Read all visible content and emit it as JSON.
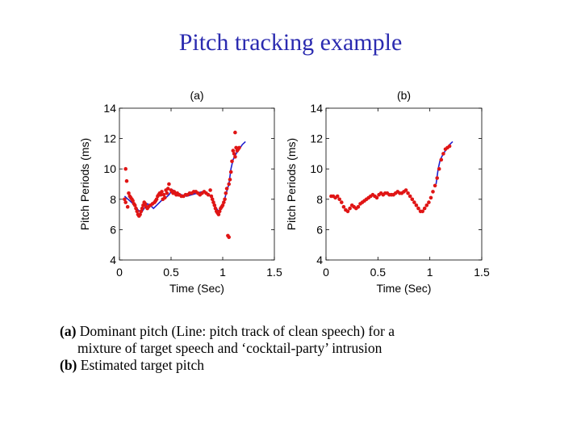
{
  "slide": {
    "title": "Pitch tracking example"
  },
  "caption": {
    "a_label": "(a)",
    "a_text_line1": " Dominant pitch (Line: pitch track of clean speech) for a",
    "a_text_line2": "mixture of target speech and ‘cocktail-party’ intrusion",
    "b_label": "(b)",
    "b_text": " Estimated target pitch"
  },
  "colors": {
    "line": "#1f1fd0",
    "dots": "#e01515",
    "axis": "#000000",
    "title": "#2b2bb0"
  },
  "chart_data": [
    {
      "type": "scatter",
      "title": "(a)",
      "xlabel": "Time (Sec)",
      "ylabel": "Pitch Periods (ms)",
      "xlim": [
        0,
        1.5
      ],
      "ylim": [
        4,
        14
      ],
      "xticks": [
        "0",
        "0.5",
        "1",
        "1.5"
      ],
      "yticks": [
        "4",
        "6",
        "8",
        "10",
        "12",
        "14"
      ],
      "grid": false,
      "series": [
        {
          "kind": "line",
          "x": [
            0.05,
            0.1,
            0.15,
            0.18,
            0.21,
            0.24,
            0.27,
            0.3,
            0.33,
            0.36,
            0.39,
            0.42,
            0.45,
            0.48,
            0.5,
            0.52,
            0.55,
            0.6,
            0.65,
            0.7,
            0.75,
            0.8,
            0.85,
            0.9,
            0.93,
            0.96,
            0.99,
            1.01,
            1.03,
            1.06,
            1.08,
            1.1,
            1.13,
            1.16,
            1.19,
            1.22
          ],
          "y": [
            8.2,
            7.9,
            7.6,
            7.3,
            7.1,
            7.4,
            7.7,
            7.6,
            7.4,
            7.6,
            7.8,
            8.0,
            8.1,
            8.3,
            8.5,
            8.6,
            8.4,
            8.3,
            8.2,
            8.3,
            8.4,
            8.5,
            8.4,
            8.1,
            7.5,
            7.2,
            7.4,
            7.8,
            8.3,
            9.0,
            10.0,
            10.6,
            11.0,
            11.3,
            11.6,
            11.8
          ]
        },
        {
          "kind": "points",
          "x": [
            0.05,
            0.06,
            0.06,
            0.07,
            0.08,
            0.09,
            0.1,
            0.11,
            0.12,
            0.13,
            0.14,
            0.15,
            0.16,
            0.17,
            0.18,
            0.19,
            0.2,
            0.21,
            0.22,
            0.23,
            0.24,
            0.25,
            0.26,
            0.27,
            0.28,
            0.3,
            0.32,
            0.34,
            0.35,
            0.36,
            0.37,
            0.38,
            0.39,
            0.4,
            0.41,
            0.42,
            0.43,
            0.44,
            0.45,
            0.46,
            0.47,
            0.48,
            0.5,
            0.51,
            0.52,
            0.53,
            0.54,
            0.55,
            0.56,
            0.57,
            0.58,
            0.6,
            0.62,
            0.64,
            0.66,
            0.68,
            0.7,
            0.72,
            0.74,
            0.76,
            0.78,
            0.8,
            0.82,
            0.84,
            0.86,
            0.88,
            0.89,
            0.9,
            0.91,
            0.92,
            0.93,
            0.94,
            0.95,
            0.96,
            0.97,
            0.98,
            0.99,
            1.0,
            1.01,
            1.02,
            1.03,
            1.04,
            1.06,
            1.07,
            1.08,
            1.09,
            1.1,
            1.11,
            1.12,
            1.13,
            1.14,
            1.15,
            1.16,
            1.05,
            1.06,
            1.12
          ],
          "y": [
            8.0,
            10.0,
            7.8,
            9.2,
            7.5,
            8.4,
            8.2,
            8.1,
            8.0,
            7.9,
            7.7,
            7.6,
            7.4,
            7.2,
            7.0,
            6.9,
            7.0,
            7.2,
            7.4,
            7.6,
            7.8,
            7.7,
            7.5,
            7.4,
            7.5,
            7.6,
            7.7,
            7.8,
            7.9,
            8.0,
            8.2,
            8.3,
            8.4,
            8.3,
            8.5,
            8.0,
            8.3,
            8.1,
            8.6,
            8.4,
            8.7,
            9.0,
            8.6,
            8.5,
            8.4,
            8.5,
            8.4,
            8.3,
            8.4,
            8.3,
            8.3,
            8.2,
            8.2,
            8.3,
            8.3,
            8.4,
            8.4,
            8.5,
            8.5,
            8.4,
            8.3,
            8.4,
            8.5,
            8.4,
            8.3,
            8.6,
            8.2,
            8.0,
            7.8,
            7.6,
            7.4,
            7.2,
            7.1,
            7.0,
            7.2,
            7.4,
            7.5,
            7.6,
            7.8,
            8.0,
            8.4,
            8.7,
            9.0,
            9.3,
            9.8,
            10.5,
            11.2,
            11.0,
            10.8,
            11.4,
            11.2,
            11.3,
            11.4,
            5.6,
            5.5,
            12.4
          ]
        }
      ]
    },
    {
      "type": "scatter",
      "title": "(b)",
      "xlabel": "Time (Sec)",
      "ylabel": "Pitch Periods (ms)",
      "xlim": [
        0,
        1.5
      ],
      "ylim": [
        4,
        14
      ],
      "xticks": [
        "0",
        "0.5",
        "1",
        "1.5"
      ],
      "yticks": [
        "4",
        "6",
        "8",
        "10",
        "12",
        "14"
      ],
      "grid": false,
      "series": [
        {
          "kind": "line",
          "x": [
            1.06,
            1.08,
            1.1,
            1.13,
            1.16,
            1.19,
            1.22
          ],
          "y": [
            9.0,
            10.0,
            10.6,
            11.0,
            11.3,
            11.6,
            11.8
          ]
        },
        {
          "kind": "points",
          "x": [
            0.05,
            0.07,
            0.09,
            0.11,
            0.13,
            0.15,
            0.17,
            0.19,
            0.21,
            0.23,
            0.25,
            0.27,
            0.29,
            0.31,
            0.33,
            0.35,
            0.37,
            0.39,
            0.41,
            0.43,
            0.45,
            0.47,
            0.49,
            0.51,
            0.53,
            0.55,
            0.57,
            0.59,
            0.61,
            0.63,
            0.65,
            0.67,
            0.69,
            0.71,
            0.73,
            0.75,
            0.77,
            0.79,
            0.81,
            0.83,
            0.85,
            0.87,
            0.89,
            0.91,
            0.93,
            0.95,
            0.97,
            0.99,
            1.01,
            1.03,
            1.05,
            1.07,
            1.09,
            1.11,
            1.13,
            1.15,
            1.17,
            1.19
          ],
          "y": [
            8.2,
            8.2,
            8.1,
            8.2,
            8.0,
            7.8,
            7.5,
            7.3,
            7.2,
            7.4,
            7.6,
            7.5,
            7.4,
            7.5,
            7.7,
            7.8,
            7.9,
            8.0,
            8.1,
            8.2,
            8.3,
            8.2,
            8.1,
            8.3,
            8.4,
            8.3,
            8.4,
            8.4,
            8.3,
            8.3,
            8.3,
            8.4,
            8.5,
            8.4,
            8.4,
            8.5,
            8.6,
            8.4,
            8.2,
            8.0,
            7.8,
            7.6,
            7.4,
            7.2,
            7.2,
            7.4,
            7.6,
            7.8,
            8.1,
            8.5,
            8.9,
            9.4,
            10.0,
            10.6,
            11.0,
            11.3,
            11.4,
            11.5
          ]
        }
      ]
    }
  ]
}
